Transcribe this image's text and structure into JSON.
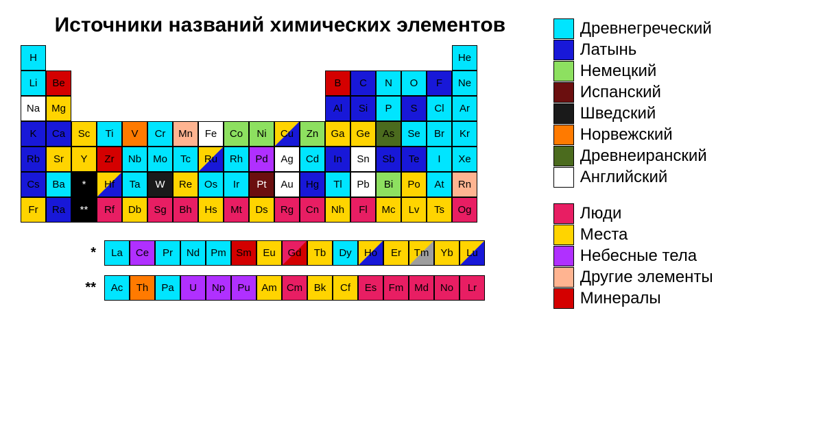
{
  "title": "Источники названий\nхимических элементов",
  "colors": {
    "greek": "#00e5ff",
    "latin": "#1818d8",
    "german": "#8de060",
    "spanish": "#6b0f0f",
    "swedish": "#1a1a1a",
    "norwegian": "#ff7a00",
    "iranian": "#4b6b1e",
    "english": "#ffffff",
    "people": "#e81e63",
    "places": "#ffd400",
    "celestial": "#b030ff",
    "other": "#ffb491",
    "mineral": "#d40000",
    "gray": "#9e9e9e",
    "black": "#000000",
    "white": "#ffffff"
  },
  "legend_lang": [
    {
      "key": "greek",
      "label": "Древнегреческий"
    },
    {
      "key": "latin",
      "label": "Латынь"
    },
    {
      "key": "german",
      "label": "Немецкий"
    },
    {
      "key": "spanish",
      "label": "Испанский"
    },
    {
      "key": "swedish",
      "label": "Шведский"
    },
    {
      "key": "norwegian",
      "label": "Норвежский"
    },
    {
      "key": "iranian",
      "label": "Древнеиранский"
    },
    {
      "key": "english",
      "label": "Английский"
    }
  ],
  "legend_cat": [
    {
      "key": "people",
      "label": "Люди"
    },
    {
      "key": "places",
      "label": "Места"
    },
    {
      "key": "celestial",
      "label": "Небесные тела"
    },
    {
      "key": "other",
      "label": "Другие элементы"
    },
    {
      "key": "mineral",
      "label": "Минералы"
    }
  ],
  "cell_text_dark": "#000000",
  "cell_text_light": "#ffffff",
  "main": [
    {
      "r": 1,
      "c": 1,
      "sym": "H",
      "bg": "greek"
    },
    {
      "r": 1,
      "c": 18,
      "sym": "He",
      "bg": "greek"
    },
    {
      "r": 2,
      "c": 1,
      "sym": "Li",
      "bg": "greek"
    },
    {
      "r": 2,
      "c": 2,
      "sym": "Be",
      "bg": "mineral"
    },
    {
      "r": 2,
      "c": 13,
      "sym": "B",
      "bg": "mineral"
    },
    {
      "r": 2,
      "c": 14,
      "sym": "C",
      "bg": "latin"
    },
    {
      "r": 2,
      "c": 15,
      "sym": "N",
      "bg": "greek"
    },
    {
      "r": 2,
      "c": 16,
      "sym": "O",
      "bg": "greek"
    },
    {
      "r": 2,
      "c": 17,
      "sym": "F",
      "bg": "latin"
    },
    {
      "r": 2,
      "c": 18,
      "sym": "Ne",
      "bg": "greek"
    },
    {
      "r": 3,
      "c": 1,
      "sym": "Na",
      "bg": "english"
    },
    {
      "r": 3,
      "c": 2,
      "sym": "Mg",
      "bg": "places"
    },
    {
      "r": 3,
      "c": 13,
      "sym": "Al",
      "bg": "latin"
    },
    {
      "r": 3,
      "c": 14,
      "sym": "Si",
      "bg": "latin"
    },
    {
      "r": 3,
      "c": 15,
      "sym": "P",
      "bg": "greek"
    },
    {
      "r": 3,
      "c": 16,
      "sym": "S",
      "bg": "latin"
    },
    {
      "r": 3,
      "c": 17,
      "sym": "Cl",
      "bg": "greek"
    },
    {
      "r": 3,
      "c": 18,
      "sym": "Ar",
      "bg": "greek"
    },
    {
      "r": 4,
      "c": 1,
      "sym": "K",
      "bg": "latin"
    },
    {
      "r": 4,
      "c": 2,
      "sym": "Ca",
      "bg": "latin"
    },
    {
      "r": 4,
      "c": 3,
      "sym": "Sc",
      "bg": "places"
    },
    {
      "r": 4,
      "c": 4,
      "sym": "Ti",
      "bg": "greek"
    },
    {
      "r": 4,
      "c": 5,
      "sym": "V",
      "bg": "norwegian"
    },
    {
      "r": 4,
      "c": 6,
      "sym": "Cr",
      "bg": "greek"
    },
    {
      "r": 4,
      "c": 7,
      "sym": "Mn",
      "bg": "other"
    },
    {
      "r": 4,
      "c": 8,
      "sym": "Fe",
      "bg": "english"
    },
    {
      "r": 4,
      "c": 9,
      "sym": "Co",
      "bg": "german"
    },
    {
      "r": 4,
      "c": 10,
      "sym": "Ni",
      "bg": "german"
    },
    {
      "r": 4,
      "c": 11,
      "sym": "Cu",
      "bg": "places",
      "bg2": "latin"
    },
    {
      "r": 4,
      "c": 12,
      "sym": "Zn",
      "bg": "german"
    },
    {
      "r": 4,
      "c": 13,
      "sym": "Ga",
      "bg": "places"
    },
    {
      "r": 4,
      "c": 14,
      "sym": "Ge",
      "bg": "places"
    },
    {
      "r": 4,
      "c": 15,
      "sym": "As",
      "bg": "iranian"
    },
    {
      "r": 4,
      "c": 16,
      "sym": "Se",
      "bg": "greek"
    },
    {
      "r": 4,
      "c": 17,
      "sym": "Br",
      "bg": "greek"
    },
    {
      "r": 4,
      "c": 18,
      "sym": "Kr",
      "bg": "greek"
    },
    {
      "r": 5,
      "c": 1,
      "sym": "Rb",
      "bg": "latin"
    },
    {
      "r": 5,
      "c": 2,
      "sym": "Sr",
      "bg": "places"
    },
    {
      "r": 5,
      "c": 3,
      "sym": "Y",
      "bg": "places"
    },
    {
      "r": 5,
      "c": 4,
      "sym": "Zr",
      "bg": "mineral"
    },
    {
      "r": 5,
      "c": 5,
      "sym": "Nb",
      "bg": "greek"
    },
    {
      "r": 5,
      "c": 6,
      "sym": "Mo",
      "bg": "greek"
    },
    {
      "r": 5,
      "c": 7,
      "sym": "Tc",
      "bg": "greek"
    },
    {
      "r": 5,
      "c": 8,
      "sym": "Ru",
      "bg": "places",
      "bg2": "latin"
    },
    {
      "r": 5,
      "c": 9,
      "sym": "Rh",
      "bg": "greek"
    },
    {
      "r": 5,
      "c": 10,
      "sym": "Pd",
      "bg": "celestial"
    },
    {
      "r": 5,
      "c": 11,
      "sym": "Ag",
      "bg": "english"
    },
    {
      "r": 5,
      "c": 12,
      "sym": "Cd",
      "bg": "greek"
    },
    {
      "r": 5,
      "c": 13,
      "sym": "In",
      "bg": "latin"
    },
    {
      "r": 5,
      "c": 14,
      "sym": "Sn",
      "bg": "english"
    },
    {
      "r": 5,
      "c": 15,
      "sym": "Sb",
      "bg": "latin"
    },
    {
      "r": 5,
      "c": 16,
      "sym": "Te",
      "bg": "latin"
    },
    {
      "r": 5,
      "c": 17,
      "sym": "I",
      "bg": "greek"
    },
    {
      "r": 5,
      "c": 18,
      "sym": "Xe",
      "bg": "greek"
    },
    {
      "r": 6,
      "c": 1,
      "sym": "Cs",
      "bg": "latin"
    },
    {
      "r": 6,
      "c": 2,
      "sym": "Ba",
      "bg": "greek"
    },
    {
      "r": 6,
      "c": 3,
      "sym": "*",
      "bg": "black",
      "fg": "white"
    },
    {
      "r": 6,
      "c": 4,
      "sym": "Hf",
      "bg": "places",
      "bg2": "latin"
    },
    {
      "r": 6,
      "c": 5,
      "sym": "Ta",
      "bg": "greek"
    },
    {
      "r": 6,
      "c": 6,
      "sym": "W",
      "bg": "swedish",
      "fg": "white"
    },
    {
      "r": 6,
      "c": 7,
      "sym": "Re",
      "bg": "places"
    },
    {
      "r": 6,
      "c": 8,
      "sym": "Os",
      "bg": "greek"
    },
    {
      "r": 6,
      "c": 9,
      "sym": "Ir",
      "bg": "greek"
    },
    {
      "r": 6,
      "c": 10,
      "sym": "Pt",
      "bg": "spanish",
      "fg": "white"
    },
    {
      "r": 6,
      "c": 11,
      "sym": "Au",
      "bg": "english"
    },
    {
      "r": 6,
      "c": 12,
      "sym": "Hg",
      "bg": "latin"
    },
    {
      "r": 6,
      "c": 13,
      "sym": "Tl",
      "bg": "greek"
    },
    {
      "r": 6,
      "c": 14,
      "sym": "Pb",
      "bg": "english"
    },
    {
      "r": 6,
      "c": 15,
      "sym": "Bi",
      "bg": "german"
    },
    {
      "r": 6,
      "c": 16,
      "sym": "Po",
      "bg": "places"
    },
    {
      "r": 6,
      "c": 17,
      "sym": "At",
      "bg": "greek"
    },
    {
      "r": 6,
      "c": 18,
      "sym": "Rn",
      "bg": "other"
    },
    {
      "r": 7,
      "c": 1,
      "sym": "Fr",
      "bg": "places"
    },
    {
      "r": 7,
      "c": 2,
      "sym": "Ra",
      "bg": "latin"
    },
    {
      "r": 7,
      "c": 3,
      "sym": "**",
      "bg": "black",
      "fg": "white"
    },
    {
      "r": 7,
      "c": 4,
      "sym": "Rf",
      "bg": "people"
    },
    {
      "r": 7,
      "c": 5,
      "sym": "Db",
      "bg": "places"
    },
    {
      "r": 7,
      "c": 6,
      "sym": "Sg",
      "bg": "people"
    },
    {
      "r": 7,
      "c": 7,
      "sym": "Bh",
      "bg": "people"
    },
    {
      "r": 7,
      "c": 8,
      "sym": "Hs",
      "bg": "places"
    },
    {
      "r": 7,
      "c": 9,
      "sym": "Mt",
      "bg": "people"
    },
    {
      "r": 7,
      "c": 10,
      "sym": "Ds",
      "bg": "places"
    },
    {
      "r": 7,
      "c": 11,
      "sym": "Rg",
      "bg": "people"
    },
    {
      "r": 7,
      "c": 12,
      "sym": "Cn",
      "bg": "people"
    },
    {
      "r": 7,
      "c": 13,
      "sym": "Nh",
      "bg": "places"
    },
    {
      "r": 7,
      "c": 14,
      "sym": "Fl",
      "bg": "people"
    },
    {
      "r": 7,
      "c": 15,
      "sym": "Mc",
      "bg": "places"
    },
    {
      "r": 7,
      "c": 16,
      "sym": "Lv",
      "bg": "places"
    },
    {
      "r": 7,
      "c": 17,
      "sym": "Ts",
      "bg": "places"
    },
    {
      "r": 7,
      "c": 18,
      "sym": "Og",
      "bg": "people"
    }
  ],
  "lanth_mark": "*",
  "lanth": [
    {
      "sym": "La",
      "bg": "greek"
    },
    {
      "sym": "Ce",
      "bg": "celestial"
    },
    {
      "sym": "Pr",
      "bg": "greek"
    },
    {
      "sym": "Nd",
      "bg": "greek"
    },
    {
      "sym": "Pm",
      "bg": "greek"
    },
    {
      "sym": "Sm",
      "bg": "mineral"
    },
    {
      "sym": "Eu",
      "bg": "places"
    },
    {
      "sym": "Gd",
      "bg": "people",
      "bg2": "mineral"
    },
    {
      "sym": "Tb",
      "bg": "places"
    },
    {
      "sym": "Dy",
      "bg": "greek"
    },
    {
      "sym": "Ho",
      "bg": "places",
      "bg2": "latin"
    },
    {
      "sym": "Er",
      "bg": "places"
    },
    {
      "sym": "Tm",
      "bg": "places",
      "bg2": "gray"
    },
    {
      "sym": "Yb",
      "bg": "places"
    },
    {
      "sym": "Lu",
      "bg": "places",
      "bg2": "latin"
    }
  ],
  "act_mark": "**",
  "act": [
    {
      "sym": "Ac",
      "bg": "greek"
    },
    {
      "sym": "Th",
      "bg": "norwegian"
    },
    {
      "sym": "Pa",
      "bg": "greek"
    },
    {
      "sym": "U",
      "bg": "celestial"
    },
    {
      "sym": "Np",
      "bg": "celestial"
    },
    {
      "sym": "Pu",
      "bg": "celestial"
    },
    {
      "sym": "Am",
      "bg": "places"
    },
    {
      "sym": "Cm",
      "bg": "people"
    },
    {
      "sym": "Bk",
      "bg": "places"
    },
    {
      "sym": "Cf",
      "bg": "places"
    },
    {
      "sym": "Es",
      "bg": "people"
    },
    {
      "sym": "Fm",
      "bg": "people"
    },
    {
      "sym": "Md",
      "bg": "people"
    },
    {
      "sym": "No",
      "bg": "people"
    },
    {
      "sym": "Lr",
      "bg": "people"
    }
  ]
}
